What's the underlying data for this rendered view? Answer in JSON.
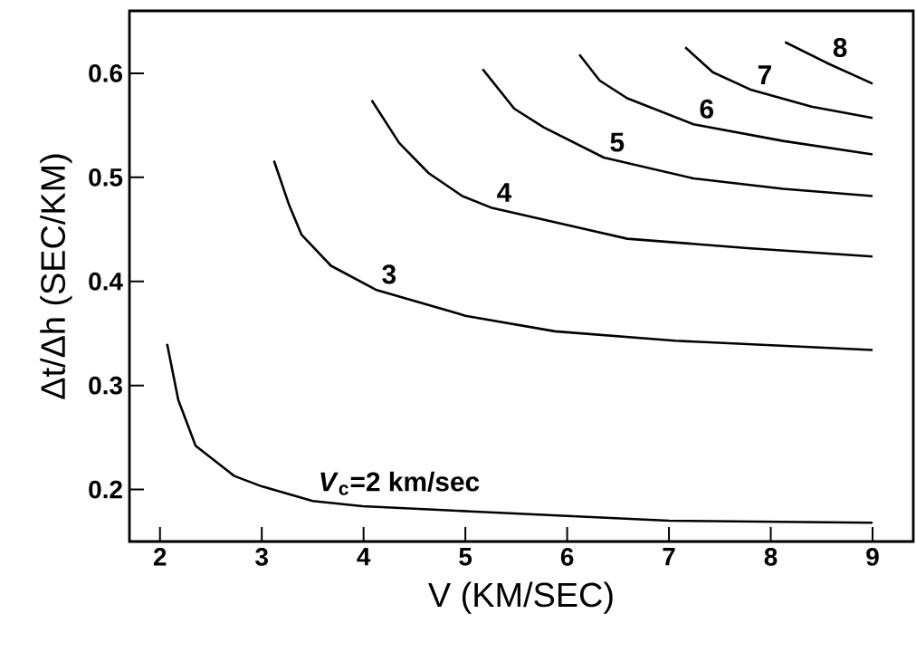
{
  "chart_data": {
    "type": "line",
    "xlabel": "V (KM/SEC)",
    "ylabel": "Δt/Δh (SEC/KM)",
    "xlim": [
      1.7,
      9.4
    ],
    "ylim": [
      0.15,
      0.66
    ],
    "xticks": [
      2,
      3,
      4,
      5,
      6,
      7,
      8,
      9
    ],
    "yticks": [
      0.2,
      0.3,
      0.4,
      0.5,
      0.6
    ],
    "marker": "none",
    "line_style": "solid",
    "legend": false,
    "series": [
      {
        "name": "*V*$_{c}$=2 km/sec",
        "color": "#000000",
        "x": [
          2.07,
          2.18,
          2.35,
          2.73,
          3.0,
          3.5,
          3.99,
          5.05,
          7.0,
          9.0
        ],
        "values": [
          0.34,
          0.286,
          0.242,
          0.213,
          0.203,
          0.189,
          0.184,
          0.179,
          0.17,
          0.168
        ]
      },
      {
        "name": "3",
        "color": "#000000",
        "x": [
          3.12,
          3.27,
          3.39,
          3.68,
          4.12,
          5.0,
          5.88,
          7.06,
          9.0
        ],
        "values": [
          0.516,
          0.473,
          0.445,
          0.415,
          0.392,
          0.367,
          0.352,
          0.343,
          0.334
        ]
      },
      {
        "name": "4",
        "color": "#000000",
        "x": [
          4.08,
          4.35,
          4.64,
          4.97,
          5.25,
          6.59,
          7.77,
          9.0
        ],
        "values": [
          0.574,
          0.533,
          0.504,
          0.482,
          0.471,
          0.441,
          0.432,
          0.424
        ]
      },
      {
        "name": "5",
        "color": "#000000",
        "x": [
          5.17,
          5.48,
          5.77,
          6.36,
          7.24,
          8.12,
          9.0
        ],
        "values": [
          0.604,
          0.566,
          0.548,
          0.519,
          0.499,
          0.489,
          0.482
        ]
      },
      {
        "name": "6",
        "color": "#000000",
        "x": [
          6.12,
          6.32,
          6.59,
          7.24,
          8.12,
          9.0
        ],
        "values": [
          0.618,
          0.593,
          0.576,
          0.551,
          0.535,
          0.522
        ]
      },
      {
        "name": "7",
        "color": "#000000",
        "x": [
          7.16,
          7.43,
          7.81,
          8.4,
          9.0
        ],
        "values": [
          0.625,
          0.601,
          0.584,
          0.568,
          0.557
        ]
      },
      {
        "name": "8",
        "color": "#000000",
        "x": [
          8.14,
          8.55,
          9.0
        ],
        "values": [
          0.63,
          0.61,
          0.59
        ]
      }
    ]
  }
}
